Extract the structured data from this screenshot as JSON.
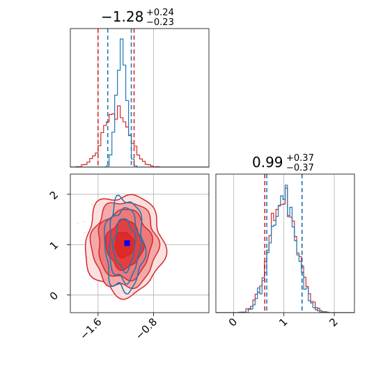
{
  "chart_data": {
    "type": "corner",
    "grid": true,
    "parameters": [
      {
        "median": -1.28,
        "upper_err": 0.24,
        "lower_err": 0.23,
        "title_main": "−1.28",
        "title_sup": "+0.24",
        "title_sub": "−0.23",
        "range": [
          -2.0,
          -0.0
        ]
      },
      {
        "median": 0.99,
        "upper_err": 0.37,
        "lower_err": 0.37,
        "title_main": "0.99",
        "title_sup": "+0.37",
        "title_sub": "−0.37",
        "range": [
          -0.35,
          2.4
        ]
      }
    ],
    "x_ticks_param1": [
      -1.6,
      -0.8
    ],
    "x_tick_labels_param1": [
      "−1.6",
      "−0.8"
    ],
    "x_ticks_param2": [
      0,
      1,
      2
    ],
    "x_tick_labels_param2": [
      "0",
      "1",
      "2"
    ],
    "y_ticks_param2": [
      0,
      1,
      2
    ],
    "y_tick_labels_param2": [
      "0",
      "1",
      "2"
    ],
    "series": [
      {
        "color": "#d62728",
        "quantiles_param1": [
          -1.6,
          -1.08
        ],
        "quantiles_param2": [
          0.62,
          1.36
        ]
      },
      {
        "color": "#1f77b4",
        "quantiles_param1": [
          -1.46,
          -1.12
        ],
        "quantiles_param2": [
          0.66,
          1.36
        ]
      }
    ],
    "truth_marker": {
      "x": -1.18,
      "y": 1.03,
      "color": "#0000ff"
    }
  }
}
